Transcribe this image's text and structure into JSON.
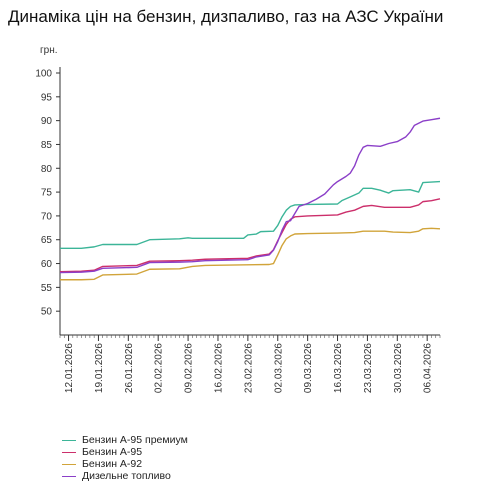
{
  "chart_data": {
    "type": "line",
    "title": "Динаміка цін на бензин, дизпаливо, газ на АЗС України",
    "ylabel": "грн.",
    "xlabel": "",
    "ylim": [
      45,
      100
    ],
    "yticks": [
      50,
      55,
      60,
      65,
      70,
      75,
      80,
      85,
      90,
      95,
      100
    ],
    "grid": false,
    "legend_position": "bottom-left",
    "x_start": "2026-01-10",
    "x_end": "2026-04-09",
    "x_tick_labels": [
      "12.01.2026",
      "19.01.2026",
      "26.01.2026",
      "02.02.2026",
      "09.02.2026",
      "16.02.2026",
      "23.02.2026",
      "02.03.2026",
      "09.03.2026",
      "16.03.2026",
      "23.03.2026",
      "30.03.2026",
      "06.04.2026"
    ],
    "x_tick_dates": [
      "2026-01-12",
      "2026-01-19",
      "2026-01-26",
      "2026-02-02",
      "2026-02-09",
      "2026-02-16",
      "2026-02-23",
      "2026-03-02",
      "2026-03-09",
      "2026-03-16",
      "2026-03-23",
      "2026-03-30",
      "2026-04-06"
    ],
    "series": [
      {
        "name": "Бензин А-95 премиум",
        "color": "#3cb598",
        "points": [
          [
            "2026-01-10",
            63.2
          ],
          [
            "2026-01-15",
            63.2
          ],
          [
            "2026-01-18",
            63.5
          ],
          [
            "2026-01-20",
            64.0
          ],
          [
            "2026-01-28",
            64.0
          ],
          [
            "2026-01-31",
            65.0
          ],
          [
            "2026-02-07",
            65.2
          ],
          [
            "2026-02-09",
            65.4
          ],
          [
            "2026-02-10",
            65.3
          ],
          [
            "2026-02-22",
            65.3
          ],
          [
            "2026-02-23",
            66.0
          ],
          [
            "2026-02-25",
            66.2
          ],
          [
            "2026-02-26",
            66.7
          ],
          [
            "2026-03-01",
            66.8
          ],
          [
            "2026-03-02",
            68.0
          ],
          [
            "2026-03-03",
            69.8
          ],
          [
            "2026-03-04",
            71.2
          ],
          [
            "2026-03-05",
            72.0
          ],
          [
            "2026-03-06",
            72.3
          ],
          [
            "2026-03-09",
            72.4
          ],
          [
            "2026-03-16",
            72.5
          ],
          [
            "2026-03-17",
            73.2
          ],
          [
            "2026-03-19",
            74.0
          ],
          [
            "2026-03-21",
            74.8
          ],
          [
            "2026-03-22",
            75.8
          ],
          [
            "2026-03-24",
            75.8
          ],
          [
            "2026-03-26",
            75.4
          ],
          [
            "2026-03-28",
            74.8
          ],
          [
            "2026-03-29",
            75.3
          ],
          [
            "2026-04-02",
            75.5
          ],
          [
            "2026-04-04",
            75.0
          ],
          [
            "2026-04-05",
            77.0
          ],
          [
            "2026-04-07",
            77.1
          ],
          [
            "2026-04-09",
            77.2
          ]
        ]
      },
      {
        "name": "Бензин А-95",
        "color": "#cc2f6b",
        "points": [
          [
            "2026-01-10",
            58.3
          ],
          [
            "2026-01-15",
            58.4
          ],
          [
            "2026-01-18",
            58.6
          ],
          [
            "2026-01-20",
            59.4
          ],
          [
            "2026-01-28",
            59.6
          ],
          [
            "2026-01-31",
            60.5
          ],
          [
            "2026-02-07",
            60.6
          ],
          [
            "2026-02-10",
            60.7
          ],
          [
            "2026-02-13",
            60.9
          ],
          [
            "2026-02-23",
            61.1
          ],
          [
            "2026-02-25",
            61.6
          ],
          [
            "2026-02-28",
            62.0
          ],
          [
            "2026-03-01",
            62.9
          ],
          [
            "2026-03-02",
            64.8
          ],
          [
            "2026-03-03",
            66.5
          ],
          [
            "2026-03-04",
            68.2
          ],
          [
            "2026-03-05",
            69.3
          ],
          [
            "2026-03-06",
            69.8
          ],
          [
            "2026-03-09",
            70.0
          ],
          [
            "2026-03-16",
            70.2
          ],
          [
            "2026-03-18",
            70.8
          ],
          [
            "2026-03-20",
            71.2
          ],
          [
            "2026-03-22",
            72.0
          ],
          [
            "2026-03-24",
            72.2
          ],
          [
            "2026-03-27",
            71.8
          ],
          [
            "2026-04-02",
            71.8
          ],
          [
            "2026-04-04",
            72.3
          ],
          [
            "2026-04-05",
            73.0
          ],
          [
            "2026-04-07",
            73.2
          ],
          [
            "2026-04-09",
            73.6
          ]
        ]
      },
      {
        "name": "Бензин А-92",
        "color": "#d1a43a",
        "points": [
          [
            "2026-01-10",
            56.6
          ],
          [
            "2026-01-15",
            56.6
          ],
          [
            "2026-01-18",
            56.7
          ],
          [
            "2026-01-20",
            57.6
          ],
          [
            "2026-01-28",
            57.8
          ],
          [
            "2026-01-31",
            58.8
          ],
          [
            "2026-02-07",
            58.9
          ],
          [
            "2026-02-10",
            59.4
          ],
          [
            "2026-02-13",
            59.6
          ],
          [
            "2026-02-28",
            59.8
          ],
          [
            "2026-03-01",
            60.0
          ],
          [
            "2026-03-02",
            61.8
          ],
          [
            "2026-03-03",
            63.8
          ],
          [
            "2026-03-04",
            65.2
          ],
          [
            "2026-03-05",
            65.8
          ],
          [
            "2026-03-06",
            66.2
          ],
          [
            "2026-03-09",
            66.3
          ],
          [
            "2026-03-16",
            66.4
          ],
          [
            "2026-03-20",
            66.5
          ],
          [
            "2026-03-22",
            66.8
          ],
          [
            "2026-03-27",
            66.8
          ],
          [
            "2026-03-29",
            66.6
          ],
          [
            "2026-04-02",
            66.5
          ],
          [
            "2026-04-04",
            66.8
          ],
          [
            "2026-04-05",
            67.3
          ],
          [
            "2026-04-07",
            67.4
          ],
          [
            "2026-04-09",
            67.3
          ]
        ]
      },
      {
        "name": "Дизельне топливо",
        "color": "#8b3fc8",
        "points": [
          [
            "2026-01-10",
            58.1
          ],
          [
            "2026-01-15",
            58.2
          ],
          [
            "2026-01-18",
            58.4
          ],
          [
            "2026-01-20",
            59.0
          ],
          [
            "2026-01-28",
            59.2
          ],
          [
            "2026-01-31",
            60.2
          ],
          [
            "2026-02-07",
            60.3
          ],
          [
            "2026-02-10",
            60.4
          ],
          [
            "2026-02-13",
            60.6
          ],
          [
            "2026-02-23",
            60.8
          ],
          [
            "2026-02-25",
            61.4
          ],
          [
            "2026-02-28",
            61.8
          ],
          [
            "2026-03-01",
            62.8
          ],
          [
            "2026-03-02",
            64.6
          ],
          [
            "2026-03-03",
            67.0
          ],
          [
            "2026-03-04",
            68.8
          ],
          [
            "2026-03-05",
            69.0
          ],
          [
            "2026-03-06",
            70.5
          ],
          [
            "2026-03-07",
            72.0
          ],
          [
            "2026-03-09",
            72.6
          ],
          [
            "2026-03-11",
            73.5
          ],
          [
            "2026-03-13",
            74.6
          ],
          [
            "2026-03-15",
            76.5
          ],
          [
            "2026-03-16",
            77.2
          ],
          [
            "2026-03-18",
            78.3
          ],
          [
            "2026-03-19",
            79.0
          ],
          [
            "2026-03-20",
            80.5
          ],
          [
            "2026-03-21",
            82.8
          ],
          [
            "2026-03-22",
            84.4
          ],
          [
            "2026-03-23",
            84.8
          ],
          [
            "2026-03-26",
            84.6
          ],
          [
            "2026-03-28",
            85.2
          ],
          [
            "2026-03-30",
            85.6
          ],
          [
            "2026-04-01",
            86.6
          ],
          [
            "2026-04-02",
            87.6
          ],
          [
            "2026-04-03",
            89.0
          ],
          [
            "2026-04-05",
            89.9
          ],
          [
            "2026-04-07",
            90.2
          ],
          [
            "2026-04-09",
            90.5
          ]
        ]
      }
    ]
  }
}
